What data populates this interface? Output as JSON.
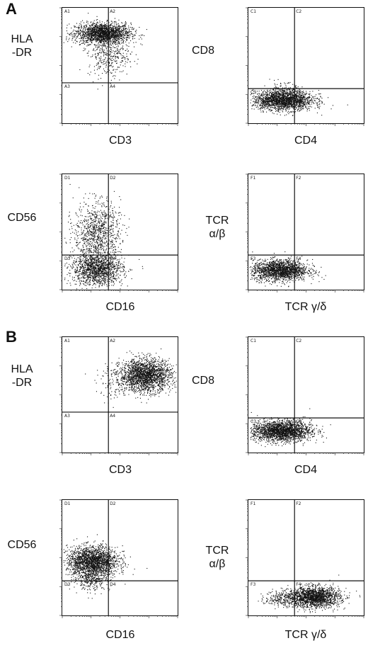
{
  "panel_letters": [
    "A",
    "B"
  ],
  "chart_data": [
    {
      "type": "scatter",
      "panel": "A",
      "xlabel": "CD3",
      "ylabel": "HLA\n-DR",
      "quadrants": [
        "A1",
        "A2",
        "A3",
        "A4"
      ],
      "clusters": [
        {
          "cx": 0.35,
          "cy": 0.78,
          "sx": 0.12,
          "sy": 0.045,
          "n": 1800,
          "angle": 0
        },
        {
          "cx": 0.4,
          "cy": 0.6,
          "sx": 0.09,
          "sy": 0.1,
          "n": 380,
          "angle": 0
        }
      ]
    },
    {
      "type": "scatter",
      "panel": "A",
      "xlabel": "CD4",
      "ylabel": "CD8",
      "quadrants": [
        "C1",
        "C2",
        "C3",
        "C4"
      ],
      "clusters": [
        {
          "cx": 0.3,
          "cy": 0.2,
          "sx": 0.13,
          "sy": 0.042,
          "n": 1900,
          "angle": 0
        },
        {
          "cx": 0.3,
          "cy": 0.27,
          "sx": 0.08,
          "sy": 0.04,
          "n": 150,
          "angle": 0
        }
      ]
    },
    {
      "type": "scatter",
      "panel": "A",
      "xlabel": "CD16",
      "ylabel": "CD56",
      "quadrants": [
        "D1",
        "D2",
        "D3",
        "D4"
      ],
      "clusters": [
        {
          "cx": 0.3,
          "cy": 0.18,
          "sx": 0.11,
          "sy": 0.07,
          "n": 1400,
          "angle": 0
        },
        {
          "cx": 0.3,
          "cy": 0.5,
          "sx": 0.1,
          "sy": 0.13,
          "n": 950,
          "angle": 0
        }
      ]
    },
    {
      "type": "scatter",
      "panel": "A",
      "xlabel": "TCR γ/δ",
      "ylabel": "TCR\nα/β",
      "quadrants": [
        "F1",
        "F2",
        "F3",
        "F4"
      ],
      "clusters": [
        {
          "cx": 0.27,
          "cy": 0.17,
          "sx": 0.12,
          "sy": 0.045,
          "n": 1800,
          "angle": 0
        }
      ]
    },
    {
      "type": "scatter",
      "panel": "B",
      "xlabel": "CD3",
      "ylabel": "HLA\n-DR",
      "quadrants": [
        "A1",
        "A2",
        "A3",
        "A4"
      ],
      "clusters": [
        {
          "cx": 0.72,
          "cy": 0.67,
          "sx": 0.11,
          "sy": 0.07,
          "n": 2000,
          "angle": 0
        },
        {
          "cx": 0.47,
          "cy": 0.6,
          "sx": 0.09,
          "sy": 0.07,
          "n": 120,
          "angle": 0
        }
      ]
    },
    {
      "type": "scatter",
      "panel": "B",
      "xlabel": "CD4",
      "ylabel": "CD8",
      "quadrants": [
        "C1",
        "C2",
        "C3",
        "C4"
      ],
      "clusters": [
        {
          "cx": 0.28,
          "cy": 0.19,
          "sx": 0.13,
          "sy": 0.045,
          "n": 2100,
          "angle": 0
        }
      ]
    },
    {
      "type": "scatter",
      "panel": "B",
      "xlabel": "CD16",
      "ylabel": "CD56",
      "quadrants": [
        "D1",
        "D2",
        "D3",
        "D4"
      ],
      "clusters": [
        {
          "cx": 0.26,
          "cy": 0.47,
          "sx": 0.11,
          "sy": 0.065,
          "n": 2000,
          "angle": 0
        },
        {
          "cx": 0.25,
          "cy": 0.32,
          "sx": 0.08,
          "sy": 0.05,
          "n": 300,
          "angle": 0
        }
      ]
    },
    {
      "type": "scatter",
      "panel": "B",
      "xlabel": "TCR γ/δ",
      "ylabel": "TCR\nα/β",
      "quadrants": [
        "F1",
        "F2",
        "F3",
        "F4"
      ],
      "clusters": [
        {
          "cx": 0.57,
          "cy": 0.16,
          "sx": 0.11,
          "sy": 0.045,
          "n": 1700,
          "angle": 0
        },
        {
          "cx": 0.3,
          "cy": 0.15,
          "sx": 0.08,
          "sy": 0.035,
          "n": 250,
          "angle": 0
        }
      ]
    }
  ]
}
